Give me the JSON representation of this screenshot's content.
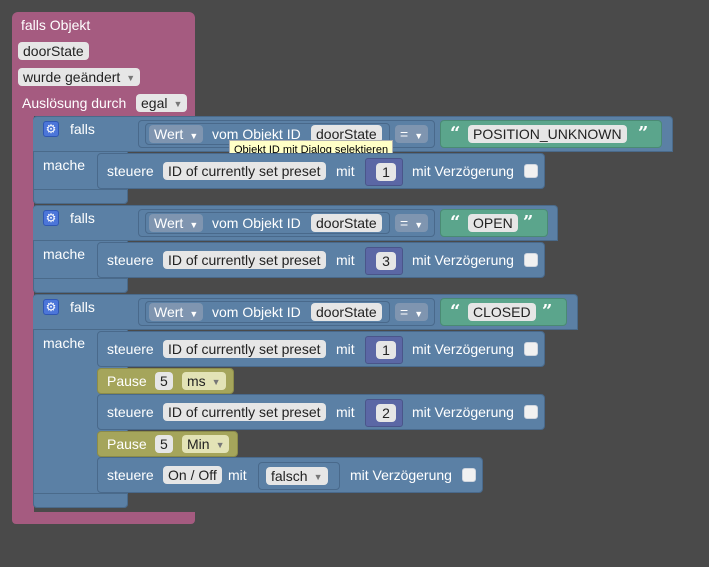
{
  "event": {
    "title": "falls Objekt",
    "object_id": "doorState",
    "trigger": "wurde geändert",
    "ausloesung_label": "Auslösung durch",
    "ausloesung_value": "egal"
  },
  "labels": {
    "falls": "falls",
    "mache": "mache",
    "wert": "Wert",
    "vom_objekt": "vom Objekt ID",
    "steuere": "steuere",
    "mit": "mit",
    "mit_verzoegerung": "mit Verzögerung",
    "pause": "Pause",
    "open_quote": "“",
    "close_quote": "”"
  },
  "tooltip": "Objekt ID mit Dialog selektieren",
  "branches": [
    {
      "object_id": "doorState",
      "operator": "=",
      "compare": "POSITION_UNKNOWN",
      "actions": [
        {
          "type": "steuere",
          "target": "ID of currently set preset",
          "value": "1"
        }
      ]
    },
    {
      "object_id": "doorState",
      "operator": "=",
      "compare": "OPEN",
      "actions": [
        {
          "type": "steuere",
          "target": "ID of currently set preset",
          "value": "3"
        }
      ]
    },
    {
      "object_id": "doorState",
      "operator": "=",
      "compare": "CLOSED",
      "actions": [
        {
          "type": "steuere",
          "target": "ID of currently set preset",
          "value": "1"
        },
        {
          "type": "pause",
          "value": "5",
          "unit": "ms"
        },
        {
          "type": "steuere",
          "target": "ID of currently set preset",
          "value": "2"
        },
        {
          "type": "pause",
          "value": "5",
          "unit": "Min"
        },
        {
          "type": "steuere",
          "target": "On / Off",
          "value": "falsch"
        }
      ]
    }
  ],
  "colors": {
    "background": "#4a4a4a",
    "event_block": "#a55b80",
    "logic_block": "#5b80a5",
    "string_block": "#5ba58c",
    "pause_block": "#a5a55b",
    "number_block": "#5b67a5",
    "mutator_gear": "#4c76d9"
  }
}
